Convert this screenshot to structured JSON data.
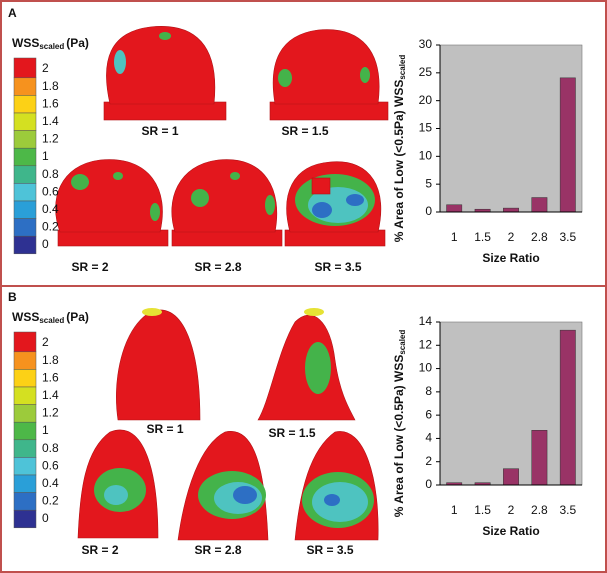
{
  "panels": [
    {
      "label": "A",
      "colorbar": {
        "title": "WSS",
        "title_sub": "scaled",
        "unit": "(Pa)",
        "ticks": [
          2,
          1.8,
          1.6,
          1.4,
          1.2,
          1,
          0.8,
          0.6,
          0.4,
          0.2,
          0
        ]
      },
      "images": [
        "SR = 1",
        "SR = 1.5",
        "SR = 2",
        "SR = 2.8",
        "SR = 3.5"
      ]
    },
    {
      "label": "B",
      "colorbar": {
        "title": "WSS",
        "title_sub": "scaled",
        "unit": "(Pa)",
        "ticks": [
          2,
          1.8,
          1.6,
          1.4,
          1.2,
          1,
          0.8,
          0.6,
          0.4,
          0.2,
          0
        ]
      },
      "images": [
        "SR = 1",
        "SR = 1.5",
        "SR = 2",
        "SR = 2.8",
        "SR = 3.5"
      ]
    }
  ],
  "chart_data": [
    {
      "type": "bar",
      "categories": [
        "1",
        "1.5",
        "2",
        "2.8",
        "3.5"
      ],
      "values": [
        1.3,
        0.5,
        0.7,
        2.6,
        24.1
      ],
      "color": "#993366",
      "background": "#c0c0c0",
      "ylim": [
        0,
        30
      ],
      "yticks": [
        0,
        5,
        10,
        15,
        20,
        25,
        30
      ],
      "y_label": "% Area of Low (<0.5Pa) WSS",
      "y_label_sub": "scaled",
      "x_label": "Size Ratio"
    },
    {
      "type": "bar",
      "categories": [
        "1",
        "1.5",
        "2",
        "2.8",
        "3.5"
      ],
      "values": [
        0.2,
        0.2,
        1.4,
        4.7,
        13.3
      ],
      "color": "#993366",
      "background": "#c0c0c0",
      "ylim": [
        0,
        14
      ],
      "yticks": [
        0,
        2,
        4,
        6,
        8,
        10,
        12,
        14
      ],
      "y_label": "% Area of Low (<0.5Pa) WSS",
      "y_label_sub": "scaled",
      "x_label": "Size Ratio"
    }
  ]
}
